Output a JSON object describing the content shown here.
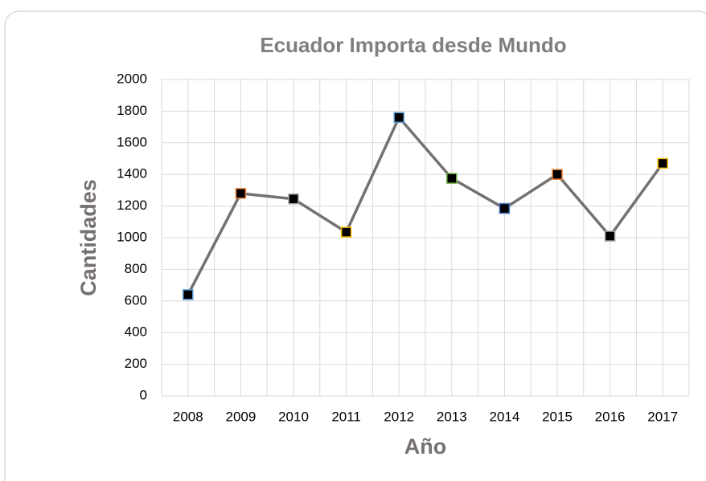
{
  "chart_data": {
    "type": "line",
    "title": "Ecuador Importa desde Mundo",
    "x_label": "Año",
    "y_label": "Cantidades",
    "categories": [
      "2008",
      "2009",
      "2010",
      "2011",
      "2012",
      "2013",
      "2014",
      "2015",
      "2016",
      "2017"
    ],
    "series": [
      {
        "name": "Cantidades",
        "color": "#767171",
        "marker_color": "#000000",
        "marker_edge_colors": [
          "#5b9bd5",
          "#ed7d31",
          "#a5a5a5",
          "#ffc000",
          "#5b9bd5",
          "#70ad47",
          "#4472c4",
          "#ed7d31",
          "#a5a5a5",
          "#ffc000"
        ],
        "values": [
          640,
          1280,
          1245,
          1035,
          1760,
          1375,
          1185,
          1400,
          1010,
          1470
        ]
      }
    ],
    "ylim": [
      0,
      2000
    ],
    "yticks": [
      0,
      200,
      400,
      600,
      800,
      1000,
      1200,
      1400,
      1600,
      1800,
      2000
    ],
    "grid": true,
    "legend": false
  }
}
